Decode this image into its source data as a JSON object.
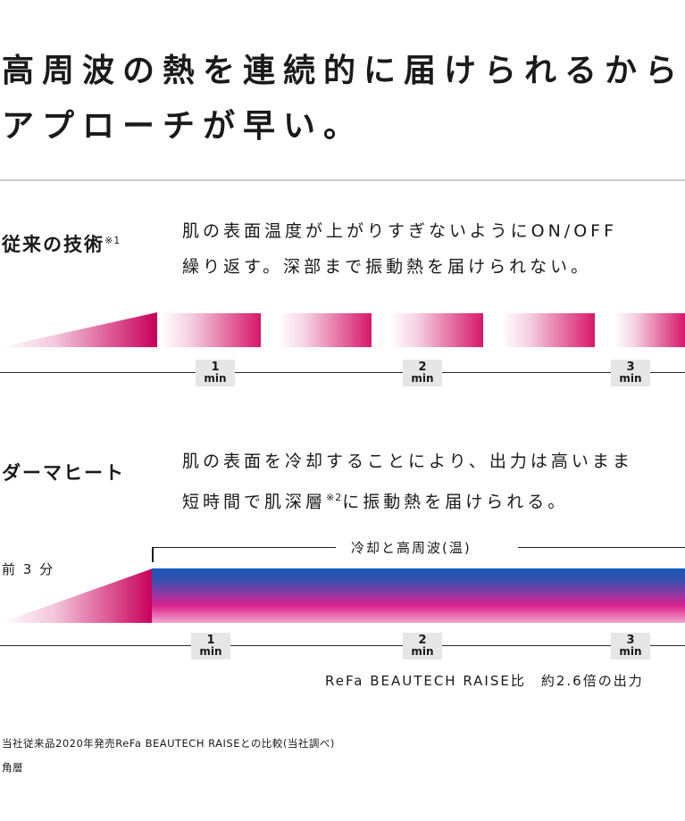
{
  "headline": {
    "line1": "高周波の熱を連続的に届けられるから",
    "line2": "アプローチが早い。"
  },
  "conventional": {
    "label": "従来の技術",
    "label_sup": "※1",
    "desc_line1": "肌の表面温度が上がりすぎないようにON/OFF",
    "desc_line2": "繰り返す。深部まで振動熱を届けられない。"
  },
  "derma": {
    "label": "ダーマヒート",
    "desc_line1": "肌の表面を冷却することにより、出力は高いまま",
    "desc_line2_a": "短時間で肌深層",
    "desc_line2_sup": "※2",
    "desc_line2_b": "に振動熱を届けられる。",
    "phase_label": "冷却と高周波(温)",
    "pre_label": "前 3 分",
    "ratio_text": "ReFa BEAUTECH RAISE比　約2.6倍の出力"
  },
  "ticks": [
    {
      "value": "1",
      "unit": "min"
    },
    {
      "value": "2",
      "unit": "min"
    },
    {
      "value": "3",
      "unit": "min"
    }
  ],
  "footnotes": {
    "note1": "当社従来品2020年発売ReFa BEAUTECH RAISEとの比較(当社調べ)",
    "note2": "角層"
  },
  "colors": {
    "magenta": "#d6176a",
    "blue": "#1558b8"
  }
}
